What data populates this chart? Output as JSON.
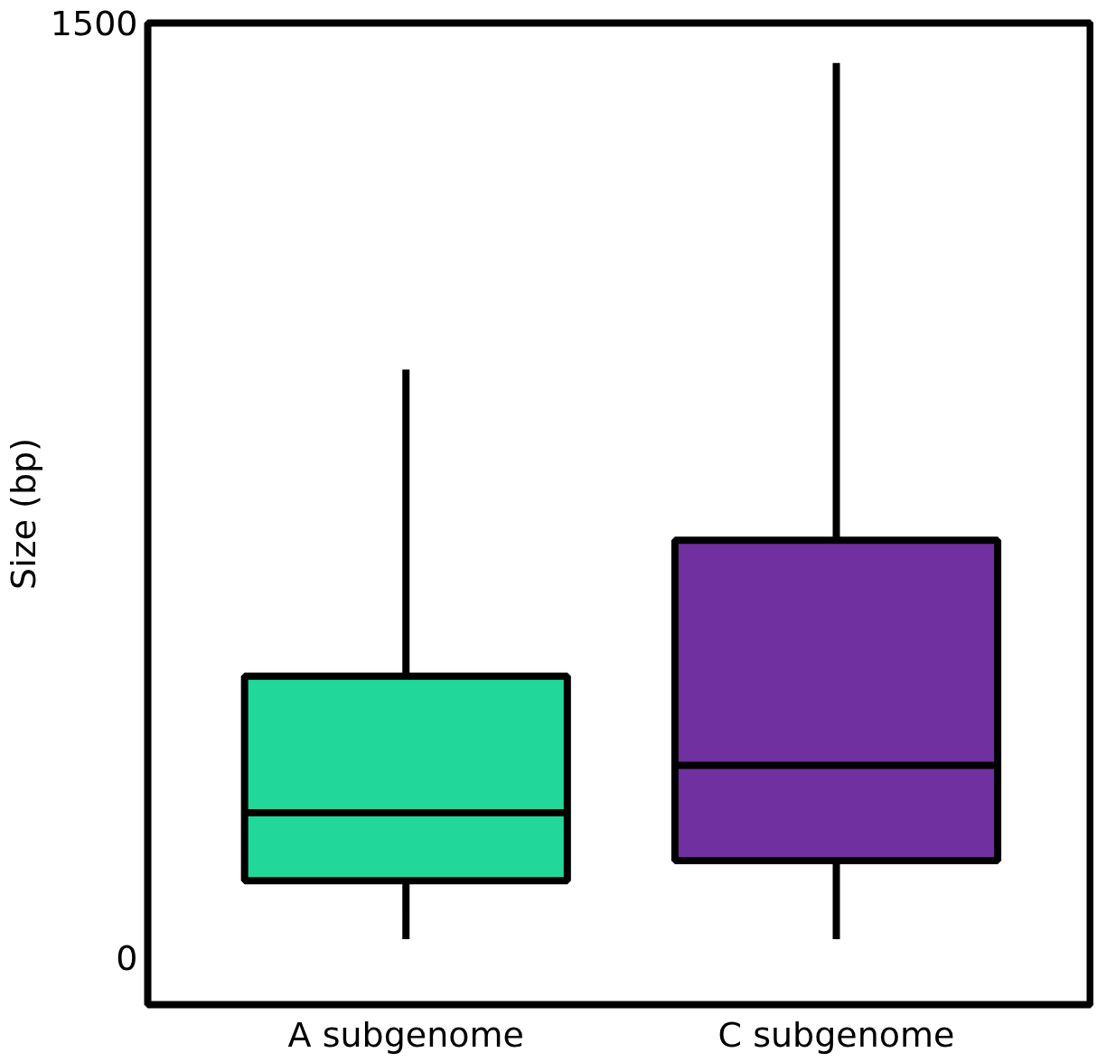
{
  "chart_data": {
    "type": "box",
    "ylabel": "Size (bp)",
    "categories": [
      "A subgenome",
      "C subgenome"
    ],
    "colors": [
      "#21d89a",
      "#7030a0"
    ],
    "boxes": [
      {
        "low": 30,
        "q1": 124,
        "median": 233,
        "q3": 452,
        "high": 944
      },
      {
        "low": 30,
        "q1": 156,
        "median": 309,
        "q3": 670,
        "high": 1436
      }
    ],
    "ylim": [
      -75,
      1500
    ],
    "yticks": [
      0,
      1500
    ],
    "grid": false
  }
}
